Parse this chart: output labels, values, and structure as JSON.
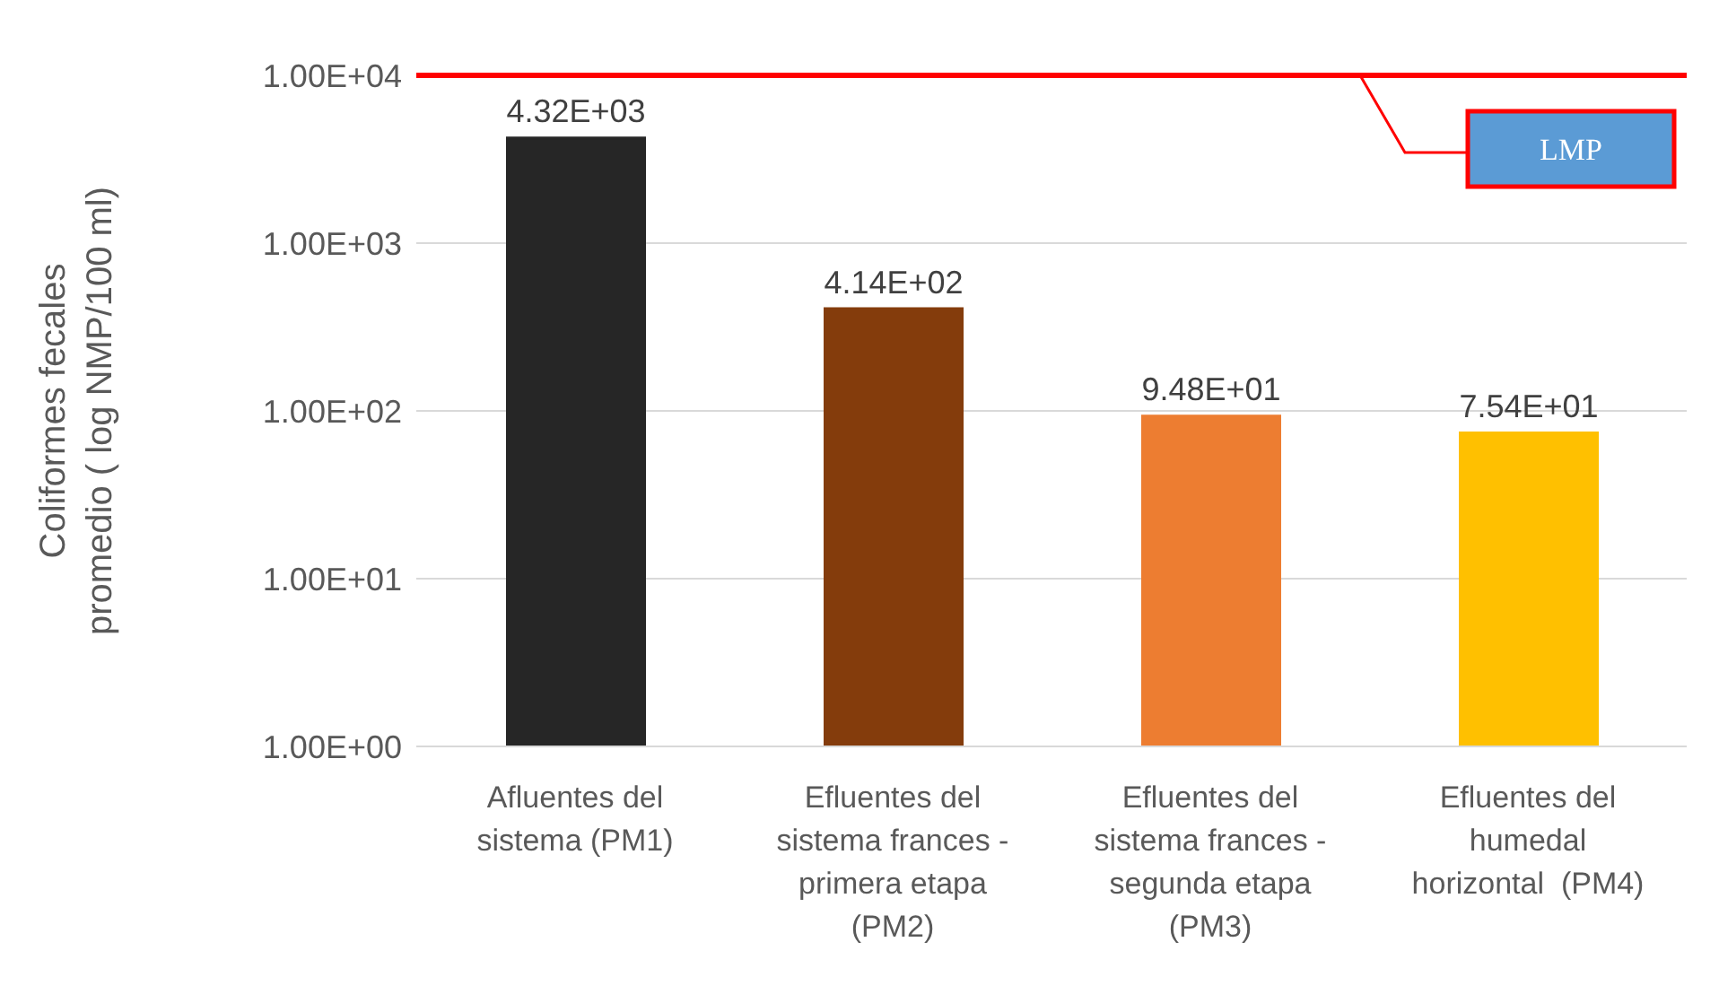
{
  "chart_data": {
    "type": "bar",
    "ylabel": "Coliformes fecales promedio ( log NMP/100 ml)",
    "categories": [
      "Afluentes del sistema (PM1)",
      "Efluentes del sistema frances - primera etapa (PM2)",
      "Efluentes del sistema frances - segunda etapa (PM3)",
      "Efluentes del humedal horizontal  (PM4)"
    ],
    "values": [
      4320,
      414,
      94.8,
      75.4
    ],
    "colors": [
      "#262626",
      "#843c0c",
      "#ed7d31",
      "#ffc000"
    ],
    "value_labels": [
      "4.32E+03",
      "4.14E+02",
      "9.48E+01",
      "7.54E+01"
    ],
    "log": true,
    "ylim": [
      1,
      10000
    ],
    "yticks": [
      {
        "value": 1,
        "label": "1.00E+00"
      },
      {
        "value": 10,
        "label": "1.00E+01"
      },
      {
        "value": 100,
        "label": "1.00E+02"
      },
      {
        "value": 1000,
        "label": "1.00E+03"
      },
      {
        "value": 10000,
        "label": "1.00E+04"
      }
    ],
    "grid": "y",
    "ref_lines": [
      {
        "axis": "y",
        "value": 10000,
        "label": "LMP",
        "color": "#ff0000"
      }
    ]
  }
}
